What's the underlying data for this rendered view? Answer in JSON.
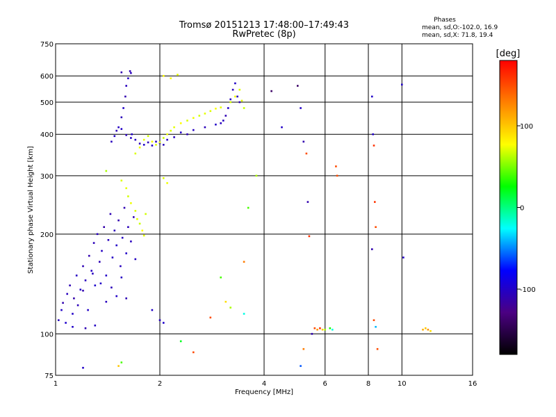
{
  "chart_data": {
    "type": "scatter",
    "title_line1": "Tromsø 20151213 17:48:00–17:49:43",
    "title_line2": "RwPretec (8p)",
    "xlabel": "Frequency [MHz]",
    "ylabel": "Stationary phase Virtual Height [km]",
    "x_scale": "log",
    "y_scale": "log",
    "xlim": [
      1,
      16
    ],
    "ylim": [
      75,
      750
    ],
    "x_ticks": [
      1,
      2,
      4,
      6,
      8,
      10,
      16
    ],
    "x_tick_labels": [
      "1",
      "2",
      "4",
      "6",
      "8",
      "10",
      "16"
    ],
    "y_ticks": [
      75,
      100,
      200,
      300,
      400,
      500,
      600,
      750
    ],
    "y_tick_labels": [
      "75",
      "100",
      "200",
      "300",
      "400",
      "500",
      "600",
      "750"
    ],
    "grid": true,
    "stats": {
      "title": "Phases",
      "line1": "mean, sd,O:-102.0, 16.9",
      "line2": "mean, sd,X:  71.8, 19.4"
    },
    "colorbar": {
      "label": "[deg]",
      "range": [
        -180,
        180
      ],
      "ticks": [
        100,
        0,
        -100
      ],
      "tick_labels": [
        "100",
        "0",
        "-100"
      ],
      "stops": [
        "#000000",
        "#4b0082",
        "#0000ff",
        "#00ffff",
        "#00ff00",
        "#ffff00",
        "#ff8000",
        "#ff0000"
      ]
    },
    "series": [
      {
        "trace": "low-frequency o-mode band (blue)",
        "points": [
          [
            1.02,
            110,
            -105
          ],
          [
            1.04,
            118,
            -100
          ],
          [
            1.05,
            124,
            -110
          ],
          [
            1.07,
            108,
            -98
          ],
          [
            1.08,
            132,
            -104
          ],
          [
            1.1,
            140,
            -108
          ],
          [
            1.12,
            115,
            -100
          ],
          [
            1.13,
            128,
            -112
          ],
          [
            1.15,
            150,
            -102
          ],
          [
            1.16,
            122,
            -106
          ],
          [
            1.18,
            136,
            -100
          ],
          [
            1.2,
            160,
            -108
          ],
          [
            1.22,
            145,
            -104
          ],
          [
            1.24,
            118,
            -100
          ],
          [
            1.25,
            172,
            -110
          ],
          [
            1.27,
            155,
            -102
          ],
          [
            1.29,
            188,
            -106
          ],
          [
            1.3,
            140,
            -98
          ],
          [
            1.32,
            200,
            -104
          ],
          [
            1.34,
            165,
            -108
          ],
          [
            1.36,
            178,
            -102
          ],
          [
            1.38,
            210,
            -112
          ],
          [
            1.4,
            150,
            -100
          ],
          [
            1.42,
            192,
            -104
          ],
          [
            1.44,
            230,
            -108
          ],
          [
            1.46,
            170,
            -102
          ],
          [
            1.48,
            205,
            -106
          ],
          [
            1.5,
            185,
            -100
          ],
          [
            1.52,
            220,
            -110
          ],
          [
            1.54,
            160,
            -104
          ],
          [
            1.56,
            195,
            -102
          ],
          [
            1.58,
            240,
            -108
          ],
          [
            1.6,
            175,
            -100
          ],
          [
            1.62,
            210,
            -106
          ],
          [
            1.65,
            190,
            -104
          ],
          [
            1.68,
            225,
            -108
          ],
          [
            1.7,
            168,
            -102
          ],
          [
            1.2,
            135,
            -110
          ],
          [
            1.28,
            152,
            -104
          ],
          [
            1.35,
            142,
            -100
          ],
          [
            1.45,
            138,
            -106
          ],
          [
            1.55,
            148,
            -102
          ],
          [
            1.12,
            105,
            -100
          ],
          [
            1.22,
            104,
            -108
          ],
          [
            1.3,
            106,
            -102
          ],
          [
            1.4,
            125,
            -104
          ],
          [
            1.5,
            130,
            -100
          ],
          [
            1.6,
            128,
            -108
          ]
        ]
      },
      {
        "trace": "F-region o-mode band (blue)",
        "points": [
          [
            1.45,
            380,
            -104
          ],
          [
            1.48,
            395,
            -100
          ],
          [
            1.5,
            410,
            -108
          ],
          [
            1.52,
            420,
            -102
          ],
          [
            1.55,
            450,
            -106
          ],
          [
            1.57,
            480,
            -100
          ],
          [
            1.59,
            520,
            -110
          ],
          [
            1.6,
            560,
            -104
          ],
          [
            1.62,
            590,
            -102
          ],
          [
            1.64,
            620,
            -108
          ],
          [
            1.66,
            400,
            -100
          ],
          [
            1.7,
            385,
            -104
          ],
          [
            1.75,
            375,
            -106
          ],
          [
            1.8,
            372,
            -100
          ],
          [
            1.85,
            378,
            -108
          ],
          [
            1.9,
            370,
            -102
          ],
          [
            1.95,
            380,
            -104
          ],
          [
            2.0,
            376,
            -100
          ],
          [
            2.05,
            372,
            -106
          ],
          [
            2.1,
            385,
            -102
          ],
          [
            2.2,
            392,
            -104
          ],
          [
            2.3,
            405,
            -100
          ],
          [
            2.4,
            400,
            -108
          ],
          [
            2.5,
            412,
            -102
          ],
          [
            2.7,
            420,
            -106
          ],
          [
            2.9,
            428,
            -100
          ],
          [
            3.0,
            432,
            -104
          ],
          [
            3.05,
            440,
            -102
          ],
          [
            3.1,
            455,
            -108
          ],
          [
            3.15,
            480,
            -100
          ],
          [
            3.2,
            510,
            -104
          ],
          [
            3.25,
            545,
            -106
          ],
          [
            3.3,
            570,
            -100
          ],
          [
            3.35,
            520,
            -102
          ],
          [
            3.4,
            500,
            -108
          ],
          [
            1.55,
            415,
            -100
          ],
          [
            1.6,
            398,
            -106
          ],
          [
            1.65,
            390,
            -102
          ]
        ]
      },
      {
        "trace": "x-mode band (green-yellow)",
        "points": [
          [
            1.55,
            290,
            70
          ],
          [
            1.6,
            275,
            72
          ],
          [
            1.62,
            260,
            68
          ],
          [
            1.65,
            248,
            74
          ],
          [
            1.7,
            235,
            70
          ],
          [
            1.72,
            222,
            72
          ],
          [
            1.75,
            215,
            66
          ],
          [
            1.78,
            205,
            78
          ],
          [
            1.8,
            198,
            72
          ],
          [
            1.82,
            230,
            68
          ],
          [
            1.7,
            350,
            70
          ],
          [
            1.75,
            365,
            74
          ],
          [
            1.8,
            385,
            72
          ],
          [
            1.85,
            395,
            68
          ],
          [
            1.9,
            380,
            76
          ],
          [
            1.95,
            372,
            70
          ],
          [
            2.0,
            378,
            72
          ],
          [
            2.05,
            390,
            66
          ],
          [
            2.1,
            400,
            74
          ],
          [
            2.15,
            410,
            70
          ],
          [
            2.2,
            420,
            72
          ],
          [
            2.3,
            432,
            78
          ],
          [
            2.4,
            440,
            70
          ],
          [
            2.5,
            448,
            74
          ],
          [
            2.6,
            455,
            68
          ],
          [
            2.7,
            462,
            72
          ],
          [
            2.8,
            470,
            70
          ],
          [
            2.9,
            478,
            76
          ],
          [
            3.0,
            482,
            72
          ],
          [
            3.2,
            500,
            68
          ],
          [
            3.3,
            520,
            74
          ],
          [
            3.4,
            545,
            70
          ],
          [
            3.45,
            505,
            72
          ],
          [
            3.5,
            480,
            66
          ],
          [
            2.05,
            295,
            70
          ],
          [
            2.1,
            285,
            74
          ],
          [
            2.05,
            600,
            80
          ],
          [
            2.15,
            590,
            76
          ],
          [
            2.25,
            605,
            72
          ]
        ]
      },
      {
        "trace": "scattered echoes",
        "points": [
          [
            1.55,
            615,
            -110
          ],
          [
            1.65,
            612,
            -105
          ],
          [
            1.9,
            118,
            -100
          ],
          [
            2.0,
            110,
            -104
          ],
          [
            2.05,
            108,
            -98
          ],
          [
            2.3,
            95,
            20
          ],
          [
            2.5,
            88,
            150
          ],
          [
            2.8,
            112,
            150
          ],
          [
            3.1,
            125,
            90
          ],
          [
            3.2,
            120,
            60
          ],
          [
            3.5,
            115,
            -20
          ],
          [
            3.0,
            148,
            40
          ],
          [
            3.5,
            165,
            130
          ],
          [
            4.2,
            540,
            -140
          ],
          [
            4.5,
            420,
            -100
          ],
          [
            5.0,
            560,
            -140
          ],
          [
            5.1,
            480,
            -100
          ],
          [
            5.2,
            380,
            -110
          ],
          [
            5.3,
            350,
            150
          ],
          [
            5.35,
            250,
            -110
          ],
          [
            5.4,
            197,
            160
          ],
          [
            5.5,
            100,
            -110
          ],
          [
            5.6,
            104,
            150
          ],
          [
            5.7,
            103,
            120
          ],
          [
            5.8,
            104,
            160
          ],
          [
            5.9,
            103,
            100
          ],
          [
            6.0,
            103,
            60
          ],
          [
            6.2,
            104,
            30
          ],
          [
            6.3,
            103,
            -20
          ],
          [
            6.45,
            320,
            150
          ],
          [
            6.5,
            300,
            150
          ],
          [
            5.2,
            90,
            130
          ],
          [
            5.1,
            80,
            -60
          ],
          [
            8.2,
            520,
            -100
          ],
          [
            8.25,
            400,
            -100
          ],
          [
            8.3,
            370,
            160
          ],
          [
            8.35,
            250,
            160
          ],
          [
            8.4,
            210,
            150
          ],
          [
            8.2,
            180,
            -110
          ],
          [
            8.3,
            110,
            150
          ],
          [
            8.4,
            105,
            -40
          ],
          [
            8.5,
            90,
            150
          ],
          [
            10.0,
            565,
            -100
          ],
          [
            10.1,
            170,
            -100
          ],
          [
            11.5,
            103,
            110
          ],
          [
            11.7,
            104,
            100
          ],
          [
            11.9,
            103,
            120
          ],
          [
            12.1,
            102,
            90
          ],
          [
            1.52,
            80,
            100
          ],
          [
            1.55,
            82,
            40
          ],
          [
            1.2,
            79,
            -100
          ],
          [
            1.4,
            310,
            60
          ],
          [
            3.6,
            240,
            40
          ],
          [
            3.8,
            300,
            60
          ]
        ]
      }
    ]
  }
}
